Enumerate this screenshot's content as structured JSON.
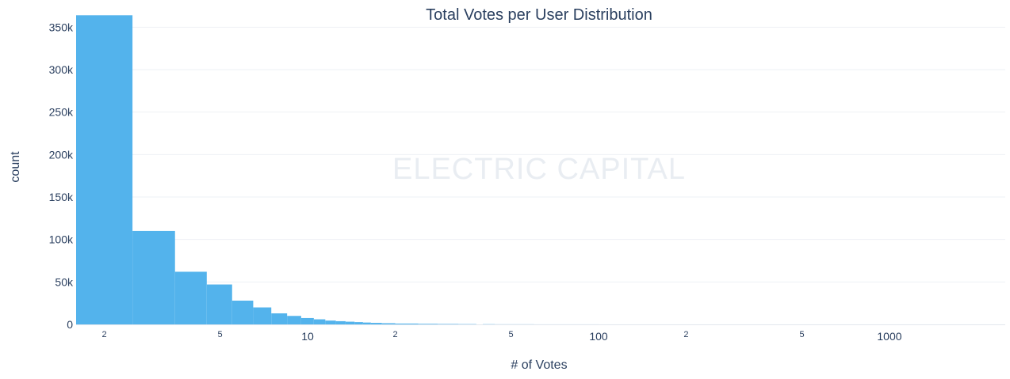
{
  "chart_data": {
    "type": "bar",
    "title": "Total Votes per User Distribution",
    "xlabel": "# of Votes",
    "ylabel": "count",
    "watermark": "ELECTRIC CAPITAL",
    "x_scale": "log",
    "xlim": [
      1.6,
      2500
    ],
    "ylim": [
      0,
      368000
    ],
    "grid": true,
    "legend": "none",
    "bar_color": "#53b3ec",
    "y_ticks": [
      {
        "value": 0,
        "label": "0"
      },
      {
        "value": 50000,
        "label": "50k"
      },
      {
        "value": 100000,
        "label": "100k"
      },
      {
        "value": 150000,
        "label": "150k"
      },
      {
        "value": 200000,
        "label": "200k"
      },
      {
        "value": 250000,
        "label": "250k"
      },
      {
        "value": 300000,
        "label": "300k"
      },
      {
        "value": 350000,
        "label": "350k"
      }
    ],
    "x_major_ticks": [
      {
        "value": 10,
        "label": "10"
      },
      {
        "value": 100,
        "label": "100"
      },
      {
        "value": 1000,
        "label": "1000"
      }
    ],
    "x_minor_ticks": [
      {
        "value": 2,
        "label": "2"
      },
      {
        "value": 5,
        "label": "5"
      },
      {
        "value": 20,
        "label": "2"
      },
      {
        "value": 50,
        "label": "5"
      },
      {
        "value": 200,
        "label": "2"
      },
      {
        "value": 500,
        "label": "5"
      }
    ],
    "bins": [
      {
        "x0": 1.6,
        "x1": 2.5,
        "count": 364000
      },
      {
        "x0": 2.5,
        "x1": 3.5,
        "count": 110000
      },
      {
        "x0": 3.5,
        "x1": 4.5,
        "count": 62000
      },
      {
        "x0": 4.5,
        "x1": 5.5,
        "count": 47000
      },
      {
        "x0": 5.5,
        "x1": 6.5,
        "count": 28000
      },
      {
        "x0": 6.5,
        "x1": 7.5,
        "count": 20000
      },
      {
        "x0": 7.5,
        "x1": 8.5,
        "count": 13000
      },
      {
        "x0": 8.5,
        "x1": 9.5,
        "count": 10000
      },
      {
        "x0": 9.5,
        "x1": 10.5,
        "count": 7500
      },
      {
        "x0": 10.5,
        "x1": 11.5,
        "count": 6000
      },
      {
        "x0": 11.5,
        "x1": 12.5,
        "count": 4500
      },
      {
        "x0": 12.5,
        "x1": 13.5,
        "count": 3800
      },
      {
        "x0": 13.5,
        "x1": 14.5,
        "count": 3200
      },
      {
        "x0": 14.5,
        "x1": 15.5,
        "count": 2700
      },
      {
        "x0": 15.5,
        "x1": 16.5,
        "count": 2200
      },
      {
        "x0": 16.5,
        "x1": 18,
        "count": 1800
      },
      {
        "x0": 18,
        "x1": 20,
        "count": 1400
      },
      {
        "x0": 20,
        "x1": 24,
        "count": 1000
      },
      {
        "x0": 24,
        "x1": 28,
        "count": 700
      },
      {
        "x0": 28,
        "x1": 33,
        "count": 500
      },
      {
        "x0": 33,
        "x1": 38,
        "count": 350
      },
      {
        "x0": 40,
        "x1": 44,
        "count": 250
      },
      {
        "x0": 44,
        "x1": 60,
        "count": 120
      },
      {
        "x0": 60,
        "x1": 100,
        "count": 50
      },
      {
        "x0": 100,
        "x1": 2500,
        "count": 15
      }
    ]
  }
}
